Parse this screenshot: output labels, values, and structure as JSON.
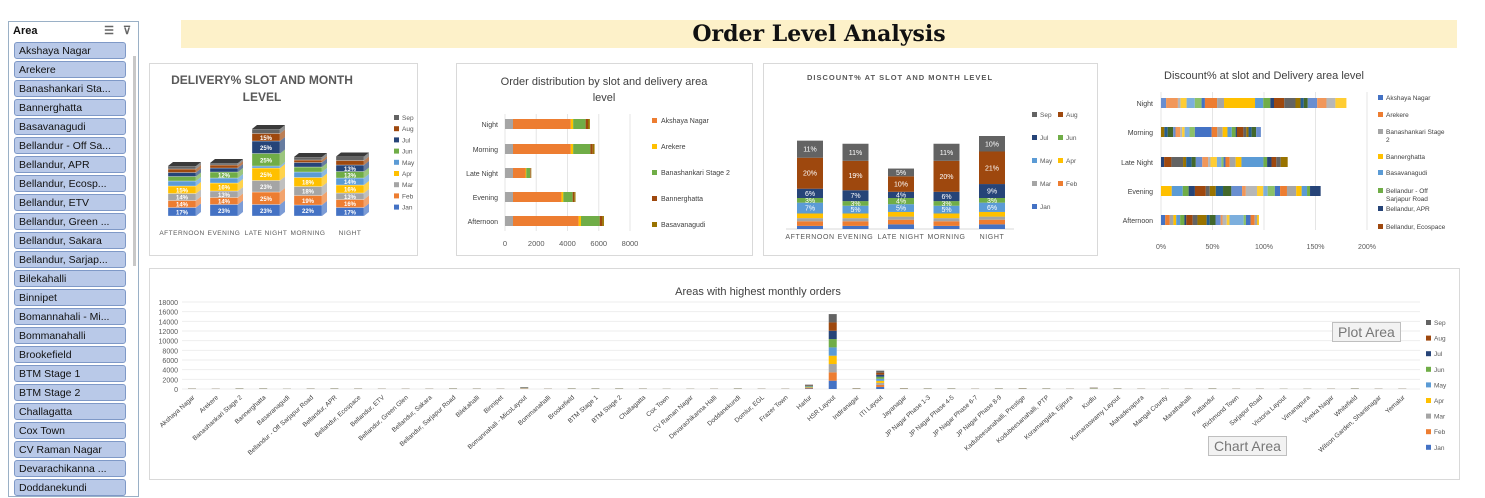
{
  "slicer": {
    "title": "Area",
    "multi_select_icon": "multi-select-icon",
    "clear_filter_icon": "clear-filter-icon",
    "items": [
      "Akshaya Nagar",
      "Arekere",
      "Banashankari Sta...",
      "Bannerghatta",
      "Basavanagudi",
      "Bellandur - Off Sa...",
      "Bellandur, APR",
      "Bellandur, Ecosp...",
      "Bellandur, ETV",
      "Bellandur, Green ...",
      "Bellandur, Sakara",
      "Bellandur, Sarjap...",
      "Bilekahalli",
      "Binnipet",
      "Bomannahali - Mi...",
      "Bommanahalli",
      "Brookefield",
      "BTM Stage 1",
      "BTM Stage 2",
      "Challagatta",
      "Cox Town",
      "CV Raman Nagar",
      "Devarachikanna ...",
      "Doddanekundi"
    ]
  },
  "title": "Order Level Analysis",
  "month_colors": {
    "Jan": "#4472c4",
    "Feb": "#ed7d31",
    "Mar": "#a5a5a5",
    "Apr": "#ffc000",
    "May": "#5b9bd5",
    "Jun": "#70ad47",
    "Jul": "#264478",
    "Aug": "#9e480e",
    "Sep": "#636363"
  },
  "chart_data": [
    {
      "type": "bar",
      "title": "DELIVERY% SLOT AND MONTH LEVEL",
      "categories": [
        "AFTERNOON",
        "EVENING",
        "LATE NIGHT",
        "MORNING",
        "NIGHT"
      ],
      "series": [
        {
          "name": "Jan",
          "values": [
            17,
            23,
            23,
            22,
            17
          ],
          "labels": [
            "17%",
            "23%",
            "23%",
            "22%",
            "17%"
          ]
        },
        {
          "name": "Feb",
          "values": [
            14,
            14,
            25,
            19,
            16
          ],
          "labels": [
            "14%",
            "14%",
            "25%",
            "19%",
            "16%"
          ]
        },
        {
          "name": "Mar",
          "values": [
            14,
            13,
            23,
            18,
            13
          ],
          "labels": [
            "14%",
            "13%",
            "23%",
            "18%",
            "13%"
          ]
        },
        {
          "name": "Apr",
          "values": [
            15,
            16,
            25,
            18,
            16
          ],
          "labels": [
            "15%",
            "16%",
            "25%",
            "18%",
            "16%"
          ]
        },
        {
          "name": "May",
          "values": [
            10,
            10,
            4,
            11,
            14
          ],
          "labels": [
            "10%",
            "10%",
            "4%",
            "11%",
            "14%"
          ]
        },
        {
          "name": "Jun",
          "values": [
            9,
            12,
            25,
            10,
            13
          ],
          "labels": [
            "9%",
            "12%",
            "25%",
            "10%",
            "13%"
          ]
        },
        {
          "name": "Jul",
          "values": [
            8,
            8,
            25,
            9,
            13
          ],
          "labels": [
            "8%",
            "8%",
            "25%",
            "9%",
            "13%"
          ]
        },
        {
          "name": "Aug",
          "values": [
            7,
            6,
            15,
            5,
            9
          ],
          "labels": [
            "7%",
            "6%",
            "15%",
            "5%",
            "9%"
          ]
        },
        {
          "name": "Sep",
          "values": [
            6,
            4,
            9,
            6,
            8
          ],
          "labels": [
            "6%",
            "4%",
            "9%",
            "6%",
            "8%"
          ]
        }
      ]
    },
    {
      "type": "bar",
      "orientation": "horizontal",
      "stacked": true,
      "title": "Order distribution by slot and delivery area level",
      "categories": [
        "Afternoon",
        "Evening",
        "Late Night",
        "Morning",
        "Night"
      ],
      "xlim": [
        0,
        8000
      ],
      "xticks": [
        "0",
        "2000",
        "4000",
        "6000",
        "8000"
      ],
      "series": [
        {
          "name": "Akshaya Nagar",
          "color": "#ed7d31",
          "values": [
            4200,
            3100,
            800,
            3700,
            3700
          ]
        },
        {
          "name": "Arekere",
          "color": "#ffc000",
          "values": [
            150,
            120,
            50,
            150,
            150
          ]
        },
        {
          "name": "Banashankari Stage 2",
          "color": "#70ad47",
          "values": [
            1200,
            600,
            250,
            1100,
            800
          ]
        },
        {
          "name": "Bannerghatta",
          "color": "#9e480e",
          "values": [
            150,
            100,
            40,
            150,
            150
          ]
        },
        {
          "name": "Basavanagudi",
          "color": "#997300",
          "values": [
            120,
            80,
            30,
            120,
            120
          ]
        }
      ],
      "legend": [
        "Akshaya Nagar",
        "Arekere",
        "Banashankari Stage 2",
        "Bannerghatta",
        "Basavanagudi"
      ]
    },
    {
      "type": "bar",
      "stacked": true,
      "title": "DISCOUNT% AT SLOT AND MONTH LEVEL",
      "categories": [
        "AFTERNOON",
        "EVENING",
        "LATE NIGHT",
        "MORNING",
        "NIGHT"
      ],
      "series": [
        {
          "name": "Jan",
          "values": [
            2,
            2,
            3,
            2,
            3
          ],
          "labels": [
            "",
            "",
            "",
            "",
            ""
          ]
        },
        {
          "name": "Feb",
          "values": [
            3,
            3,
            3,
            3,
            3
          ],
          "labels": [
            "",
            "",
            "",
            "",
            ""
          ]
        },
        {
          "name": "Mar",
          "values": [
            2,
            2,
            2,
            2,
            2
          ],
          "labels": [
            "",
            "",
            "",
            "",
            ""
          ]
        },
        {
          "name": "Apr",
          "values": [
            3,
            3,
            3,
            3,
            3
          ],
          "labels": [
            "",
            "",
            "",
            "",
            ""
          ]
        },
        {
          "name": "May",
          "values": [
            7,
            5,
            5,
            5,
            6
          ],
          "labels": [
            "7%",
            "5%",
            "5%",
            "5%",
            "6%"
          ]
        },
        {
          "name": "Jun",
          "values": [
            3,
            3,
            4,
            3,
            3
          ],
          "labels": [
            "3%",
            "3%",
            "4%",
            "3%",
            "3%"
          ]
        },
        {
          "name": "Jul",
          "values": [
            6,
            7,
            4,
            6,
            9
          ],
          "labels": [
            "6%",
            "7%",
            "4%",
            "6%",
            "9%"
          ]
        },
        {
          "name": "Aug",
          "values": [
            20,
            19,
            10,
            20,
            21
          ],
          "labels": [
            "20%",
            "19%",
            "10%",
            "20%",
            "21%"
          ]
        },
        {
          "name": "Sep",
          "values": [
            11,
            11,
            5,
            11,
            10
          ],
          "labels": [
            "11%",
            "11%",
            "5%",
            "11%",
            "10%"
          ]
        }
      ],
      "legend": [
        "Sep",
        "Aug",
        "Jul",
        "Jun",
        "May",
        "Apr",
        "Mar",
        "Feb",
        "Jan"
      ]
    },
    {
      "type": "bar",
      "orientation": "horizontal",
      "stacked": true,
      "title": "Discount% at slot and Delivery area level",
      "categories": [
        "Afternoon",
        "Evening",
        "Late Night",
        "Morning",
        "Night"
      ],
      "xlim": [
        0,
        200
      ],
      "xticks": [
        "0%",
        "50%",
        "100%",
        "150%",
        "200%"
      ],
      "totals": [
        95,
        155,
        123,
        97,
        180
      ],
      "legend": [
        "Akshaya Nagar",
        "Arekere",
        "Banashankari Stage 2",
        "Bannerghatta",
        "Basavanagudi",
        "Bellandur - Off Sarjapur Road",
        "Bellandur, APR",
        "Bellandur, Ecospace"
      ]
    },
    {
      "type": "bar",
      "stacked": true,
      "title": "Areas with highest monthly orders",
      "yticks": [
        "0",
        "2000",
        "4000",
        "6000",
        "8000",
        "10000",
        "12000",
        "14000",
        "16000",
        "18000"
      ],
      "ylim": [
        0,
        18000
      ],
      "categories": [
        "Akshaya Nagar",
        "Arekere",
        "Banashankari Stage 2",
        "Bannerghatta",
        "Basavanagudi",
        "Bellandur - Off Sarjapur Road",
        "Bellandur, APR",
        "Bellandur, Ecospace",
        "Bellandur, ETV",
        "Bellandur, Green Glen",
        "Bellandur, Sakara",
        "Bellandur, Sarjapur Road",
        "Bilekahalli",
        "Binnipet",
        "Bomannahali - MicoLayout",
        "Bommanahalli",
        "Brookefield",
        "BTM Stage 1",
        "BTM Stage 2",
        "Challagatta",
        "Cox Town",
        "CV Raman Nagar",
        "Devarachikanna Halli",
        "Doddanekundi",
        "Domlur, EGL",
        "Frazer Town",
        "Harlur",
        "HSR Layout",
        "Indiranagar",
        "ITI Layout",
        "Jayanagar",
        "JP Nagar Phase 1-3",
        "JP Nagar Phase 4-5",
        "JP Nagar Phase 6-7",
        "JP Nagar Phase 8-9",
        "Kadubeesanahalli, Prestige",
        "Kodubeesanahalli, PTP",
        "Koramangala, Ejipura",
        "Kudlu",
        "Kumaraswamy Layout",
        "Mahadevapura",
        "Mangal County",
        "Marathahalli",
        "Pattandur",
        "Richmond Town",
        "Sarjapur Road",
        "Victoria Layout",
        "Vimanapura",
        "Viveka Nagar",
        "Whitefield",
        "Wilson Garden, Shantinagar",
        "Yemalur"
      ],
      "totals": [
        120,
        100,
        150,
        150,
        80,
        120,
        150,
        120,
        100,
        100,
        100,
        150,
        120,
        100,
        400,
        100,
        150,
        150,
        150,
        120,
        80,
        80,
        100,
        150,
        100,
        100,
        900,
        15500,
        200,
        3800,
        200,
        150,
        150,
        100,
        150,
        200,
        150,
        100,
        300,
        150,
        100,
        80,
        100,
        150,
        100,
        100,
        80,
        80,
        100,
        150,
        100,
        100
      ],
      "legend": [
        "Sep",
        "Aug",
        "Jul",
        "Jun",
        "May",
        "Apr",
        "Mar",
        "Feb",
        "Jan"
      ],
      "annotations": {
        "plot_area": "Plot Area",
        "chart_area": "Chart Area"
      }
    }
  ]
}
